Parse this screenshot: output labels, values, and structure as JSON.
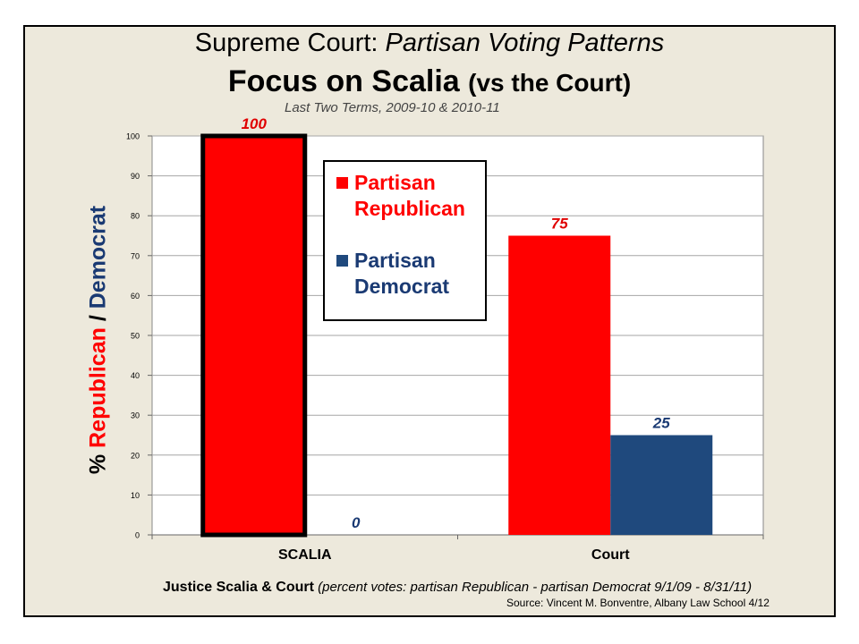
{
  "chart_data": {
    "type": "bar",
    "title": "Supreme Court:",
    "title_italic": "Partisan Voting Patterns",
    "subtitle_main": "Focus on Scalia",
    "subtitle_paren": "(vs the Court)",
    "subtitle_small": "Last Two Terms, 2009-10 & 2010-11",
    "ylabel": {
      "pct": "%",
      "republican": "Republican",
      "slash": "/",
      "democrat": "Democrat"
    },
    "categories": [
      "SCALIA",
      "Court"
    ],
    "series": [
      {
        "name": "Partisan Republican",
        "legend_lines": [
          "Partisan",
          "Republican"
        ],
        "color": "#ff0000",
        "values": [
          100,
          75
        ],
        "labels": [
          "100",
          "75"
        ]
      },
      {
        "name": "Partisan Democrat",
        "legend_lines": [
          "Partisan",
          "Democrat"
        ],
        "color": "#1f497d",
        "values": [
          0,
          25
        ],
        "labels": [
          "0",
          "25"
        ]
      }
    ],
    "ylim": [
      0,
      100
    ],
    "yticks": [
      0,
      10,
      20,
      30,
      40,
      50,
      60,
      70,
      80,
      90,
      100
    ],
    "grid": true,
    "legend_position": "top-center",
    "highlighted_bar": "SCALIA Partisan Republican",
    "caption_main": "Justice Scalia & Court",
    "caption_detail": "(percent votes: partisan Republican - partisan Democrat 9/1/09 - 8/31/11)",
    "source": "Source: Vincent M. Bonventre, Albany Law School  4/12"
  }
}
